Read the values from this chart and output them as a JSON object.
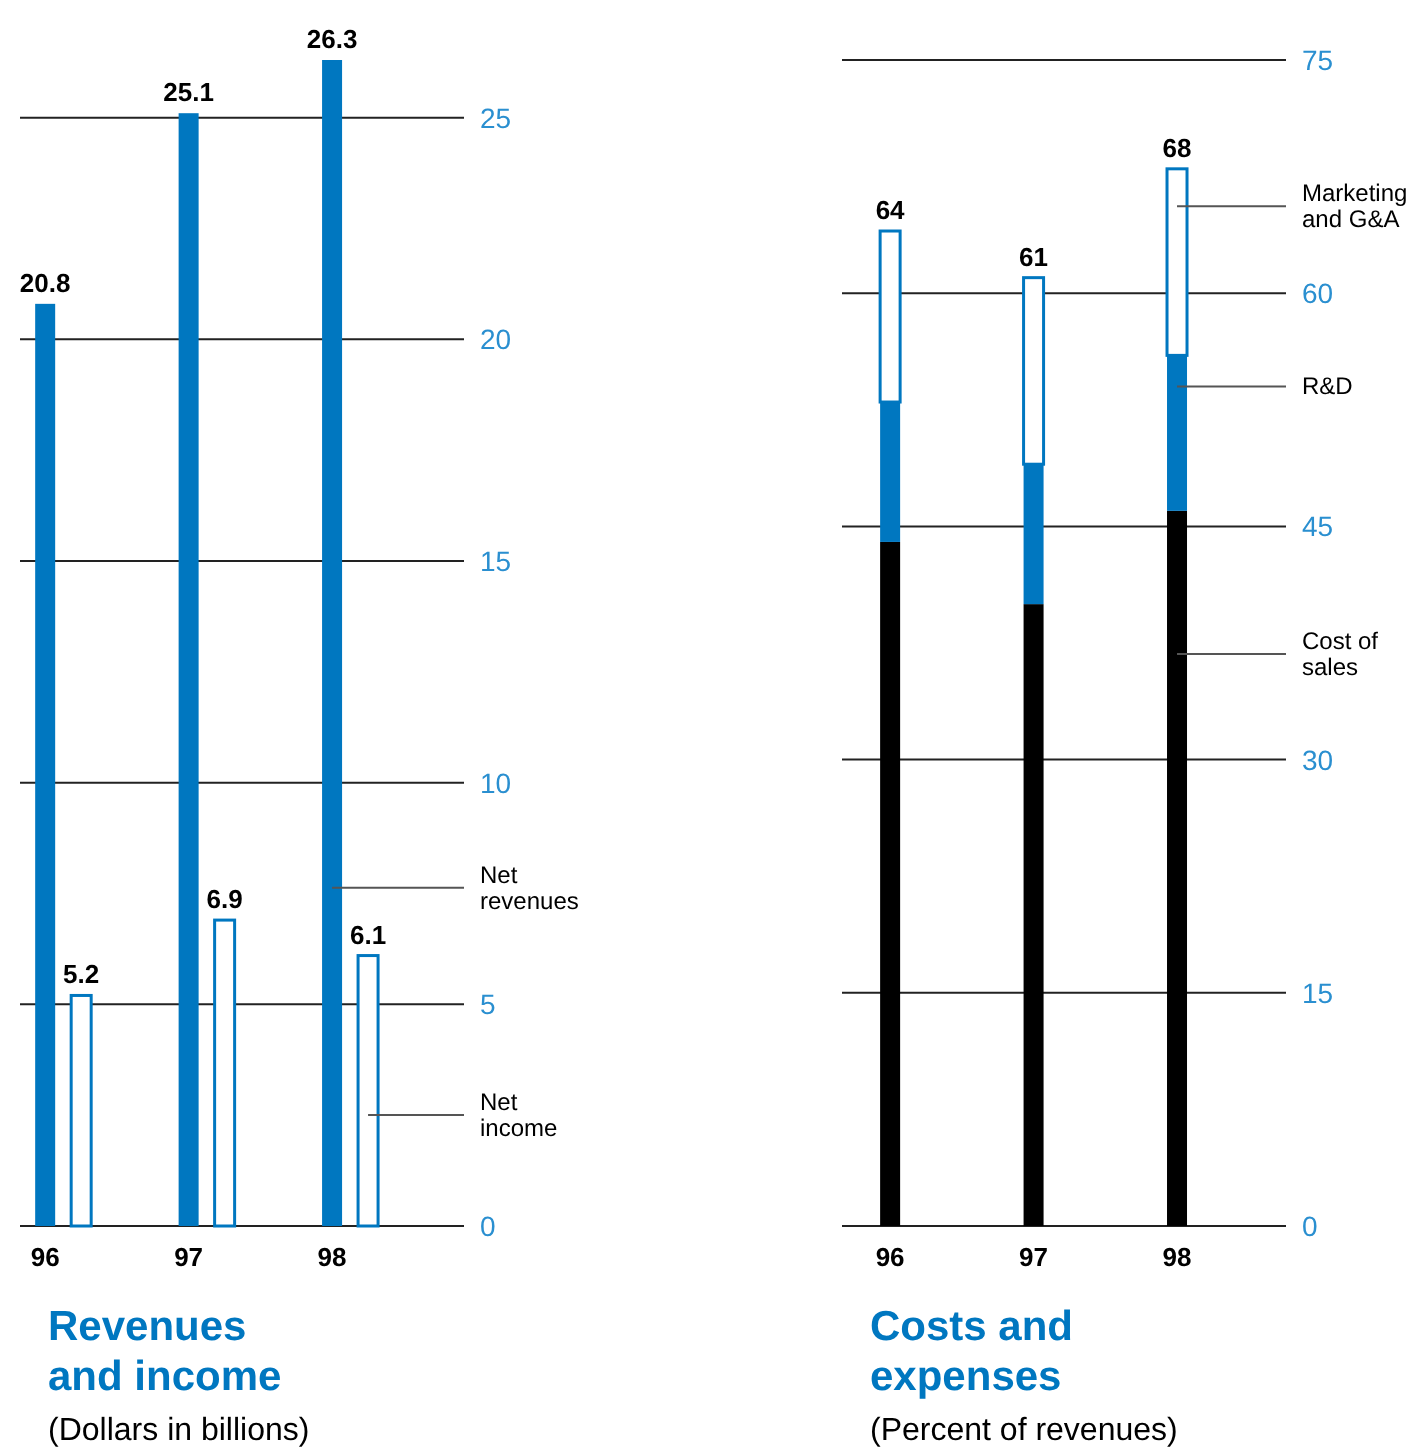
{
  "chart_data": [
    {
      "type": "bar",
      "title": "Revenues and income",
      "subtitle": "(Dollars in billions)",
      "categories": [
        "96",
        "97",
        "98"
      ],
      "series": [
        {
          "name": "Net revenues",
          "color": "#0077c0",
          "values": [
            20.8,
            25.1,
            26.3
          ]
        },
        {
          "name": "Net income",
          "color": "#ffffff",
          "values": [
            5.2,
            6.9,
            6.1
          ]
        }
      ],
      "ylim": [
        0,
        26.3
      ],
      "yticks": [
        0,
        5,
        10,
        15,
        20,
        25
      ],
      "grid": "y",
      "data_labels": true
    },
    {
      "type": "bar",
      "title": "Costs and expenses",
      "subtitle": "(Percent of revenues)",
      "categories": [
        "96",
        "97",
        "98"
      ],
      "stacked": true,
      "series": [
        {
          "name": "Cost of sales",
          "color": "#000000",
          "values": [
            44,
            40,
            46
          ]
        },
        {
          "name": "R&D",
          "color": "#0077c0",
          "values": [
            9,
            9,
            10
          ]
        },
        {
          "name": "Marketing and G&A",
          "color": "#ffffff",
          "values": [
            11,
            12,
            12
          ]
        }
      ],
      "totals": [
        "64",
        "61",
        "68"
      ],
      "ylim": [
        0,
        75
      ],
      "yticks": [
        0,
        15,
        30,
        45,
        60,
        75
      ],
      "grid": "y"
    }
  ]
}
